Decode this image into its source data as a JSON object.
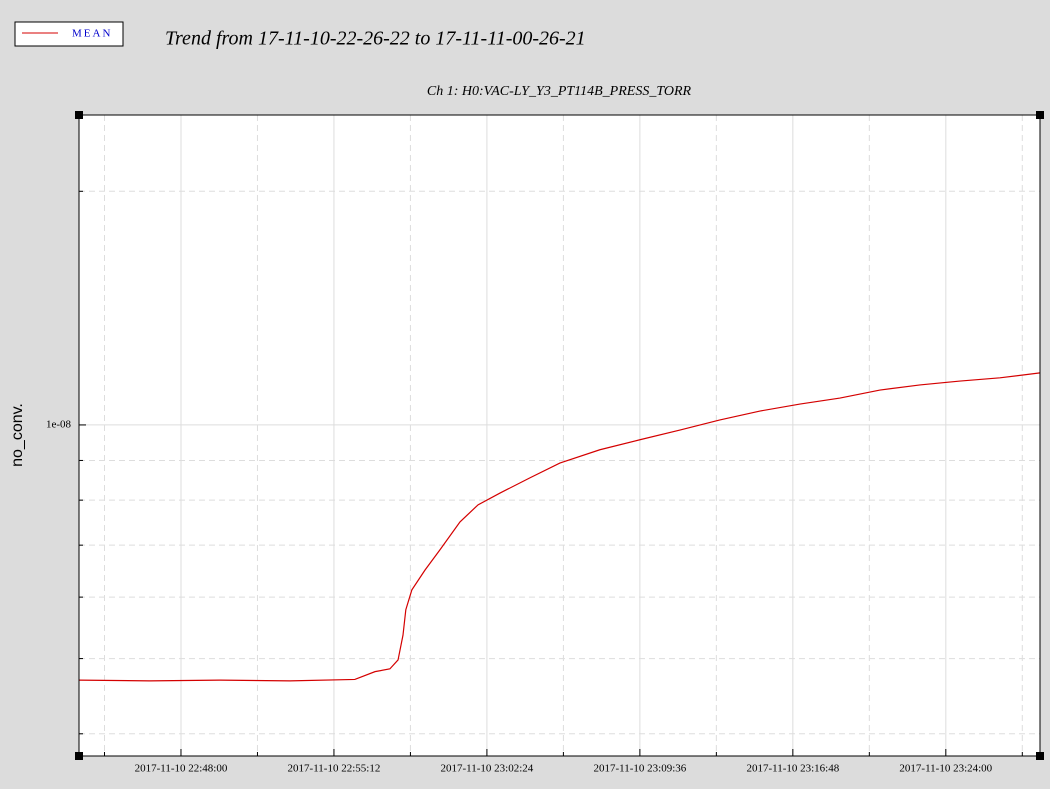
{
  "chart_data": {
    "type": "line",
    "title": "Trend from 17-11-10-22-26-22 to 17-11-11-00-26-21",
    "subtitle": "Ch 1: H0:VAC-LY_Y3_PT114B_PRESS_TORR",
    "ylabel": "no_conv.",
    "log_y": true,
    "grid": true,
    "legend": "top-left",
    "x": [
      "2017-11-10 22:43:12",
      "2017-11-10 22:46:32",
      "2017-11-10 22:49:50",
      "2017-11-10 22:53:08",
      "2017-11-10 22:56:11",
      "2017-11-10 22:57:08",
      "2017-11-10 22:57:50",
      "2017-11-10 22:58:13",
      "2017-11-10 22:58:27",
      "2017-11-10 22:58:35",
      "2017-11-10 22:58:52",
      "2017-11-10 22:59:29",
      "2017-11-10 23:00:11",
      "2017-11-10 23:01:08",
      "2017-11-10 23:01:59",
      "2017-11-10 23:03:01",
      "2017-11-10 23:04:26",
      "2017-11-10 23:05:50",
      "2017-11-10 23:07:43",
      "2017-11-10 23:09:36",
      "2017-11-10 23:11:29",
      "2017-11-10 23:13:22",
      "2017-11-10 23:15:15",
      "2017-11-10 23:17:08",
      "2017-11-10 23:19:01",
      "2017-11-10 23:20:54",
      "2017-11-10 23:22:47",
      "2017-11-10 23:24:40",
      "2017-11-10 23:26:33",
      "2017-11-10 23:28:26"
    ],
    "series": [
      {
        "name": "MEAN",
        "color": "#d40000",
        "values": [
          4.69e-09,
          4.68e-09,
          4.69e-09,
          4.68e-09,
          4.7e-09,
          4.81e-09,
          4.85e-09,
          4.98e-09,
          5.36e-09,
          5.78e-09,
          6.13e-09,
          6.5e-09,
          6.9e-09,
          7.5e-09,
          7.89e-09,
          8.17e-09,
          8.55e-09,
          8.93e-09,
          9.29e-09,
          9.57e-09,
          9.85e-09,
          1.015e-08,
          1.042e-08,
          1.064e-08,
          1.083e-08,
          1.109e-08,
          1.126e-08,
          1.139e-08,
          1.15e-08,
          1.167e-08
        ]
      }
    ],
    "xlim": [
      "2017-11-10 22:43:12",
      "2017-11-10 23:28:26"
    ],
    "xticks": [
      "2017-11-10 22:48:00",
      "2017-11-10 22:55:12",
      "2017-11-10 23:02:24",
      "2017-11-10 23:09:36",
      "2017-11-10 23:16:48",
      "2017-11-10 23:24:00"
    ],
    "minor_xticks": [
      "2017-11-10 22:44:24",
      "2017-11-10 22:51:36",
      "2017-11-10 22:58:48",
      "2017-11-10 23:06:00",
      "2017-11-10 23:13:12",
      "2017-11-10 23:20:24",
      "2017-11-10 23:27:36"
    ],
    "ylim": [
      3.745e-09,
      2.508e-08
    ],
    "yticks": [
      {
        "value": 1e-08,
        "label": "1e-08"
      }
    ],
    "minor_yticks": [
      4e-09,
      5e-09,
      6e-09,
      7e-09,
      8e-09,
      9e-09,
      2e-08
    ]
  }
}
